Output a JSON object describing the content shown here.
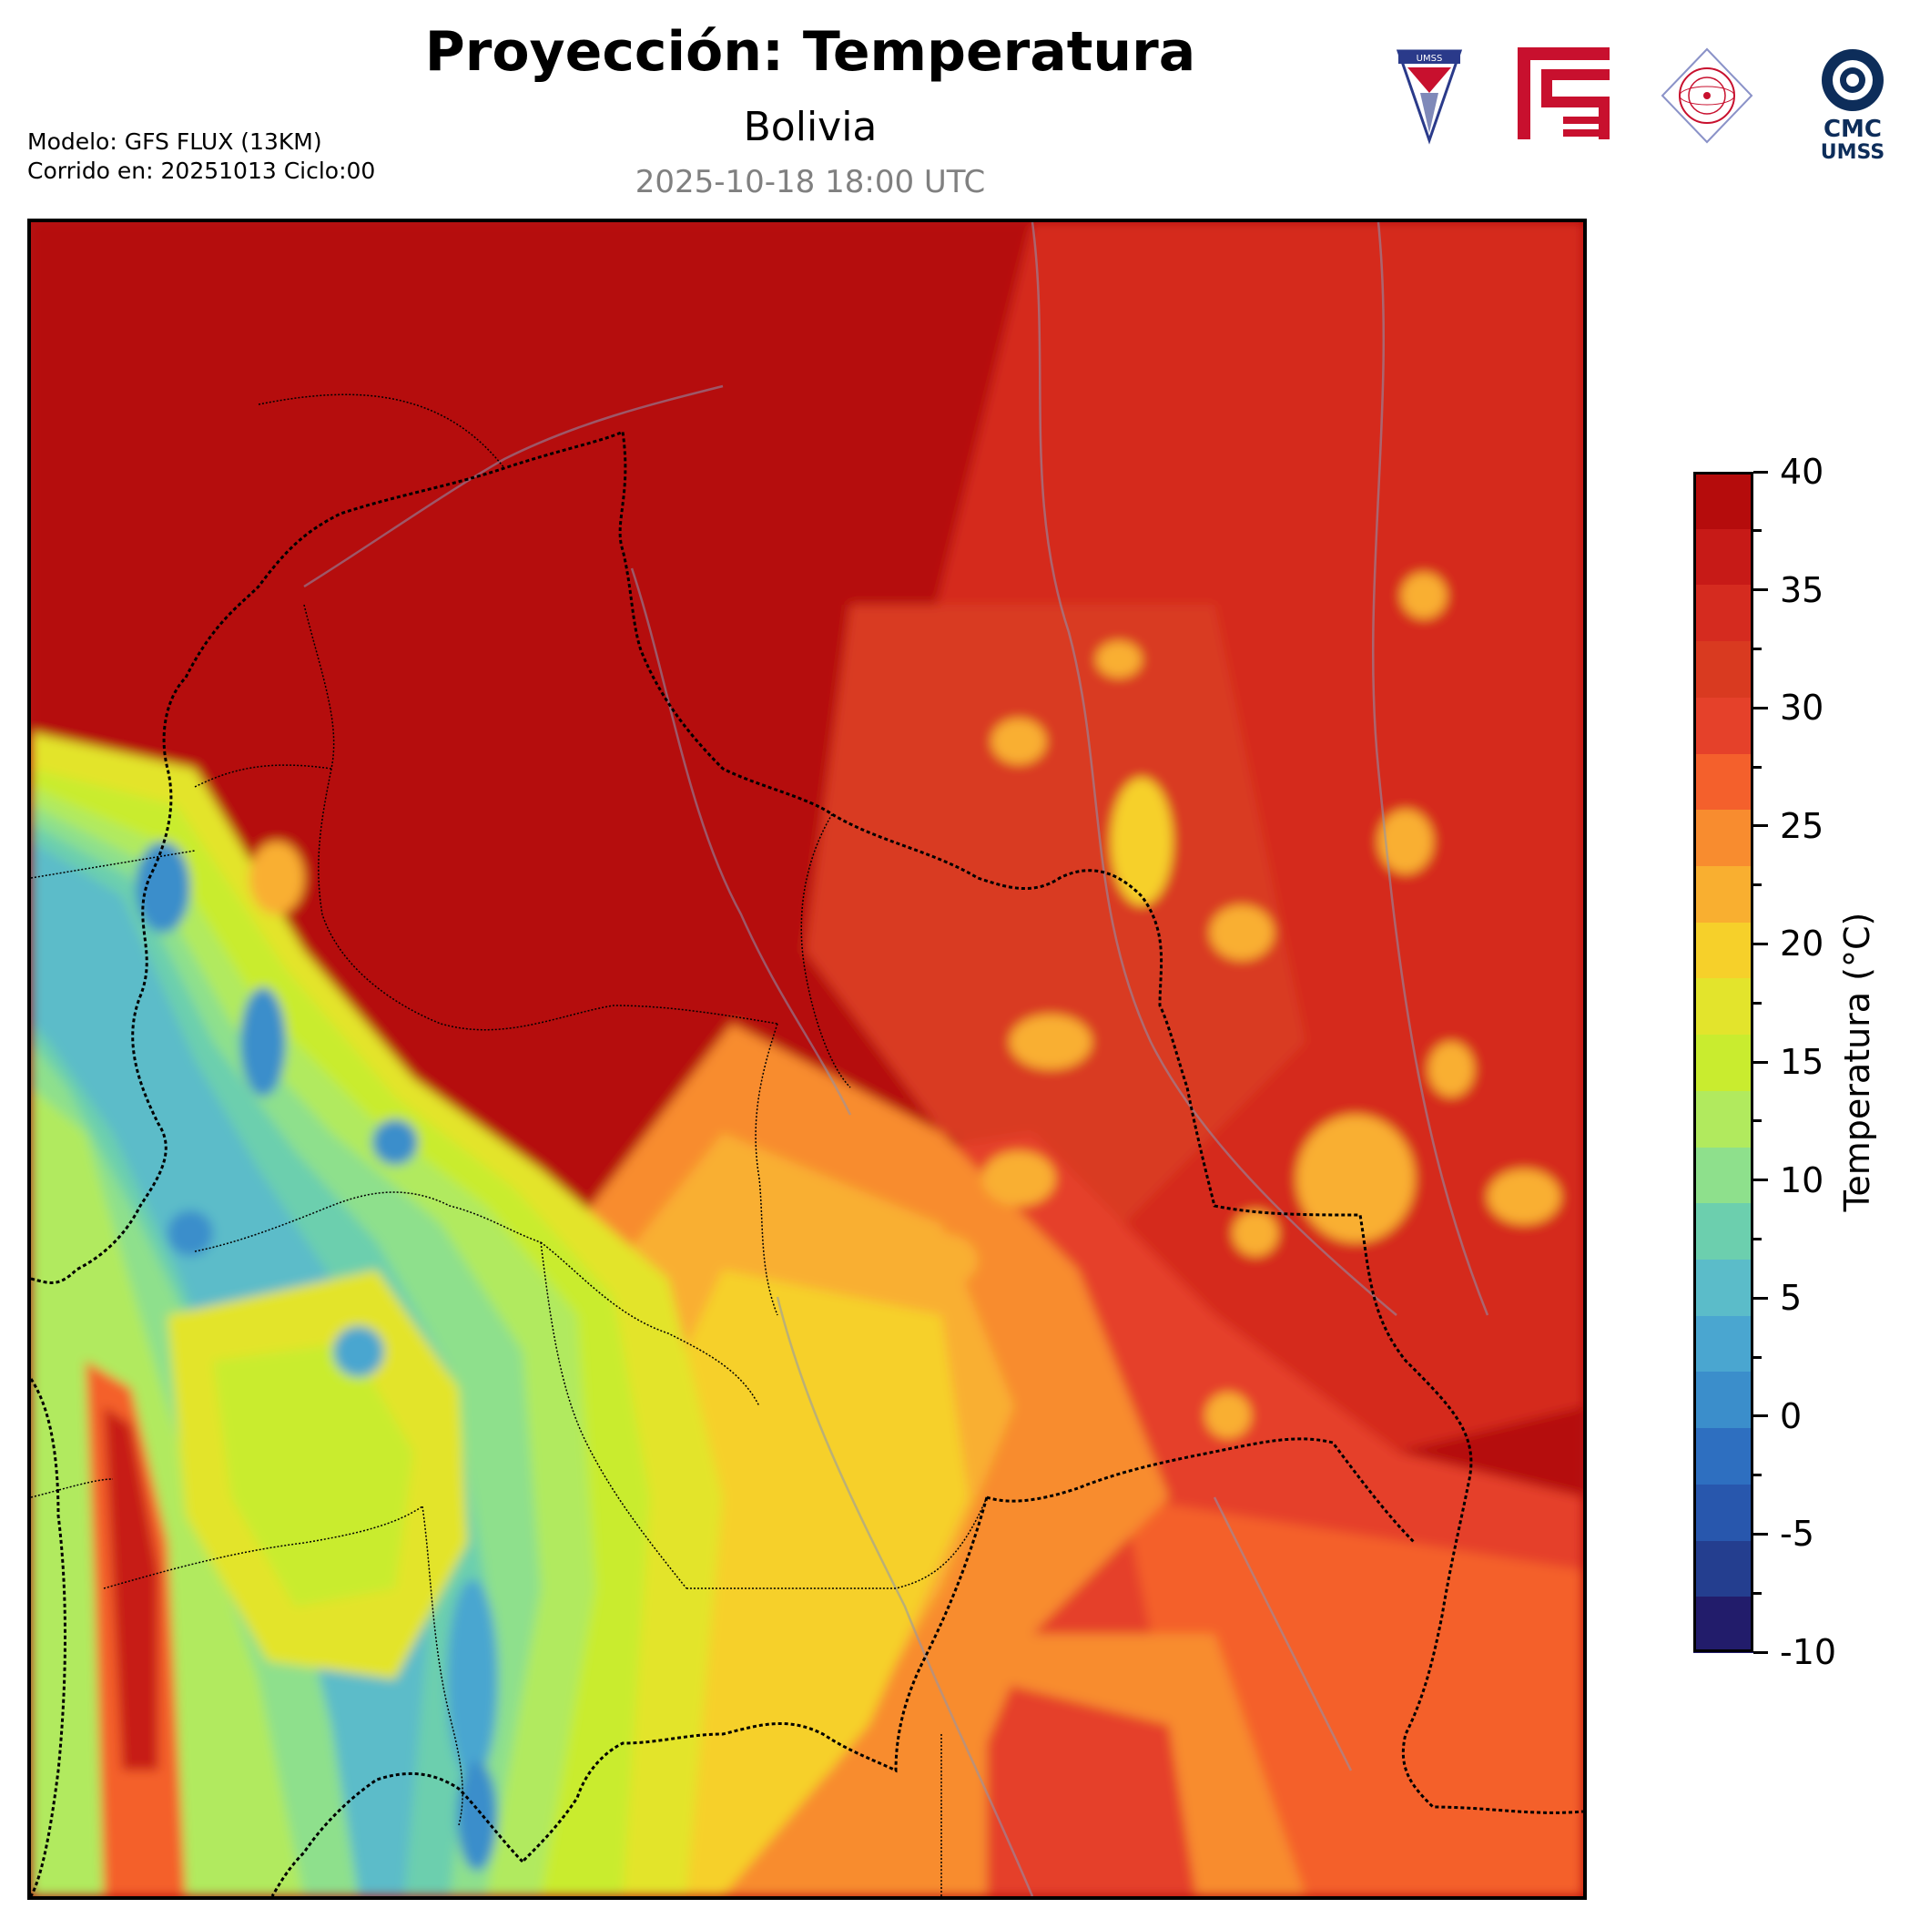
{
  "header": {
    "title": "Proyección: Temperatura",
    "subtitle": "Bolivia",
    "datetime": "2025-10-18 18:00 UTC",
    "model_line": "Modelo: GFS FLUX (13KM)",
    "run_line": "Corrido en: 20251013 Ciclo:00"
  },
  "logos": {
    "umss_text": "UMSS",
    "cmc_line1": "CMC",
    "cmc_line2": "UMSS"
  },
  "colorbar": {
    "label": "Temperatura (°C)",
    "min": -10,
    "max": 40,
    "tick_labels": [
      "40",
      "35",
      "30",
      "25",
      "20",
      "15",
      "10",
      "5",
      "0",
      "-5",
      "-10"
    ],
    "colors": [
      "#221c6b",
      "#243e8f",
      "#2857ad",
      "#2e6fc0",
      "#3b8ecb",
      "#4aa6d0",
      "#5bbcc9",
      "#6ccfae",
      "#8ee08c",
      "#b1ea5e",
      "#c9ec2f",
      "#e3e42c",
      "#f6d02a",
      "#f9af30",
      "#f88c2f",
      "#f4602c",
      "#e5412a",
      "#d93a20",
      "#d52b1f",
      "#c71a17",
      "#b50c0c"
    ]
  },
  "map": {
    "region": "Bolivia",
    "variable": "Temperatura",
    "units": "°C"
  }
}
